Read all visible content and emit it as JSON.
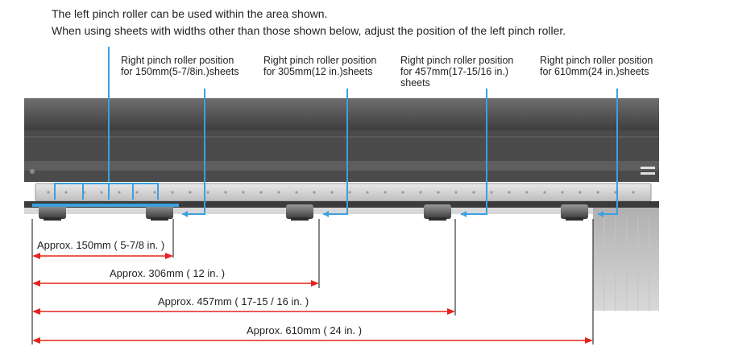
{
  "intro": {
    "line1": "The left pinch roller can be used within the area shown.",
    "line2": "When using sheets with widths other than those shown below, adjust the position of the left pinch roller."
  },
  "labels": [
    {
      "line1": "Right pinch roller position",
      "line2": "for 150mm(5-7/8in.)sheets",
      "line3": ""
    },
    {
      "line1": "Right pinch roller position",
      "line2": "for 305mm(12 in.)sheets",
      "line3": ""
    },
    {
      "line1": "Right pinch roller position",
      "line2": "for 457mm(17-15/16 in.)",
      "line3": "sheets"
    },
    {
      "line1": "Right pinch roller position",
      "line2": "for 610mm(24 in.)sheets",
      "line3": ""
    }
  ],
  "dimensions": [
    "Approx. 150mm ( 5-7/8 in. )",
    "Approx.  306mm ( 12 in. )",
    "Approx.  457mm ( 17-15 / 16 in. )",
    "Approx.  610mm ( 24 in. )"
  ],
  "colors": {
    "callout": "#3aa0e0",
    "dimension": "#e8231f",
    "machine_dark": "#5a5a5a",
    "rail": "#cfcfcf"
  }
}
